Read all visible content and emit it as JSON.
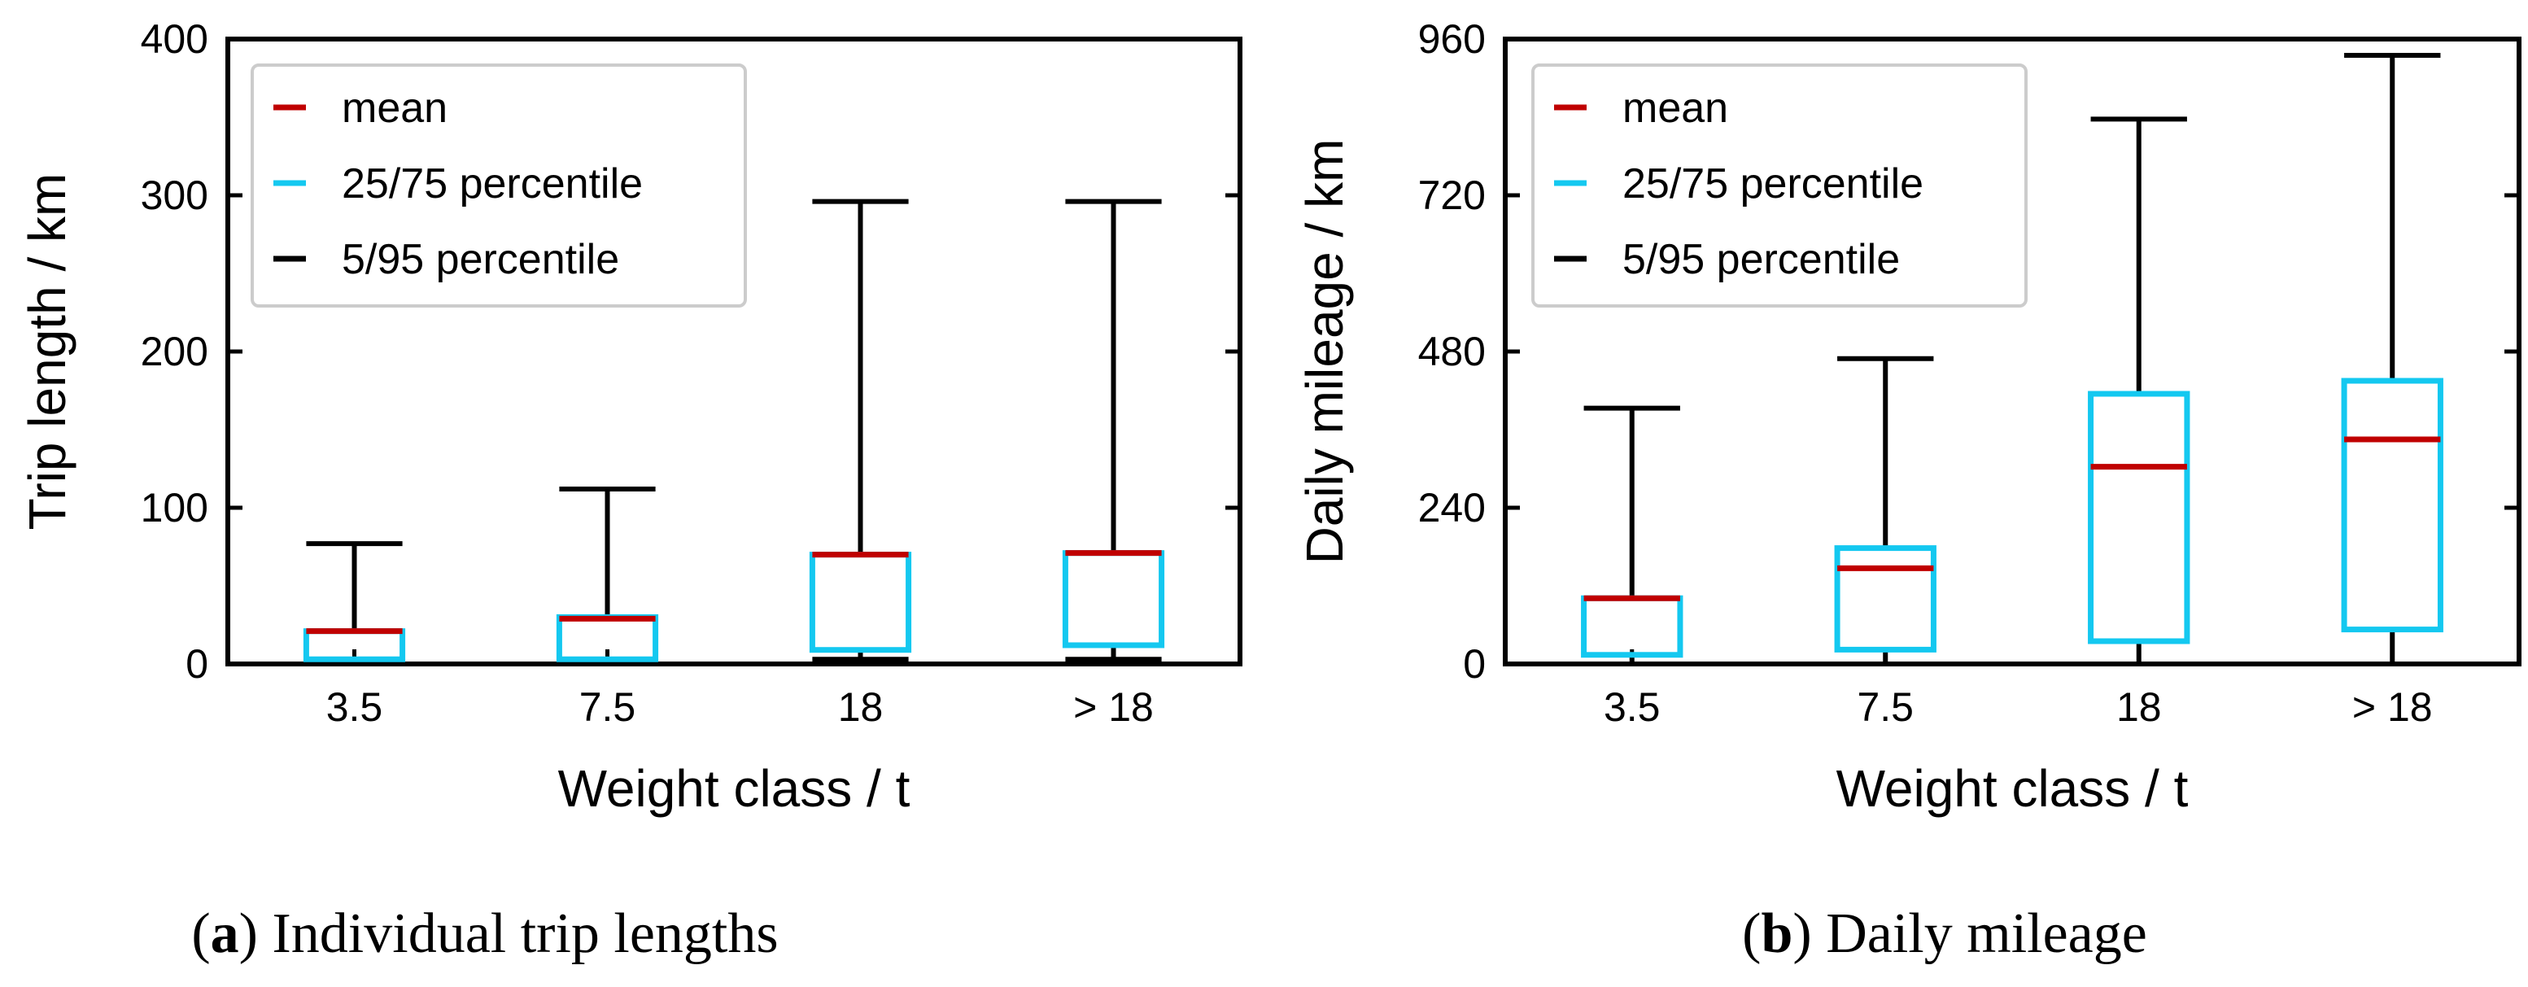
{
  "colors": {
    "mean": "#c00000",
    "quartile": "#14c8f0",
    "whisker": "#000000",
    "axis": "#000000",
    "legend_border": "#cccccc"
  },
  "legend": [
    {
      "label": "mean",
      "color_key": "mean"
    },
    {
      "label": "25/75 percentile",
      "color_key": "quartile"
    },
    {
      "label": "5/95 percentile",
      "color_key": "whisker"
    }
  ],
  "captions": {
    "a": {
      "letter": "a",
      "text": ") Individual trip lengths"
    },
    "b": {
      "letter": "b",
      "text": ") Daily mileage"
    }
  },
  "chart_data": [
    {
      "type": "box",
      "id": "a",
      "title": "",
      "xlabel": "Weight class / t",
      "ylabel": "Trip length / km",
      "ylim": [
        0,
        400
      ],
      "yticks": [
        0,
        100,
        200,
        300,
        400
      ],
      "categories": [
        "3.5",
        "7.5",
        "18",
        "> 18"
      ],
      "p5": [
        3,
        3,
        3,
        3
      ],
      "p25": [
        3,
        3,
        9,
        12
      ],
      "mean": [
        21,
        29,
        70,
        71
      ],
      "p75": [
        21,
        30,
        70,
        71
      ],
      "p95": [
        77,
        112,
        296,
        296
      ]
    },
    {
      "type": "box",
      "id": "b",
      "title": "",
      "xlabel": "Weight class / t",
      "ylabel": "Daily mileage / km",
      "ylim": [
        0,
        960
      ],
      "yticks": [
        0,
        240,
        480,
        720,
        960
      ],
      "categories": [
        "3.5",
        "7.5",
        "18",
        "> 18"
      ],
      "p5": [
        0,
        0,
        0,
        0
      ],
      "p25": [
        14,
        22,
        35,
        53
      ],
      "mean": [
        101,
        147,
        303,
        345
      ],
      "p75": [
        101,
        178,
        415,
        435
      ],
      "p95": [
        393,
        469,
        837,
        935
      ]
    }
  ]
}
